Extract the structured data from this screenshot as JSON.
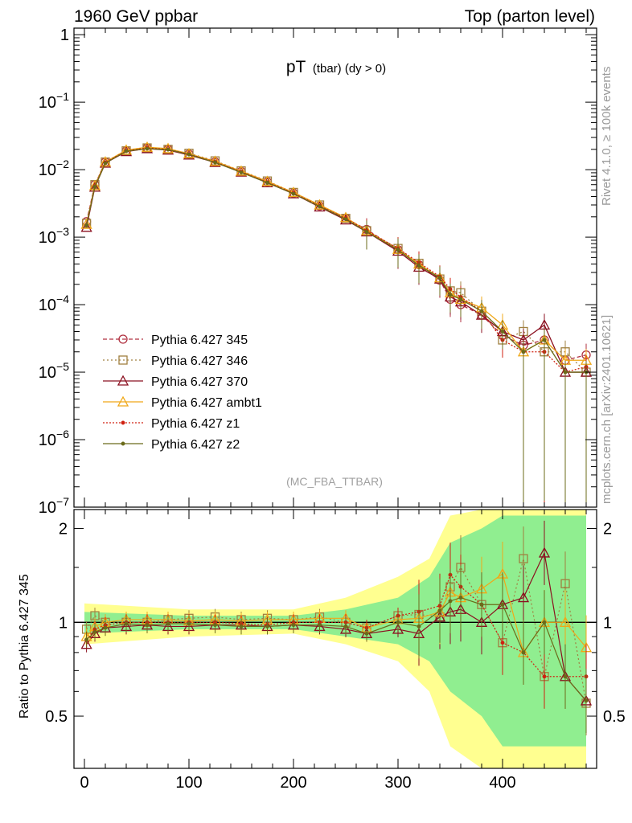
{
  "header": {
    "left": "1960 GeV ppbar",
    "right": "Top (parton level)"
  },
  "side_labels": {
    "rivet": "Rivet 4.1.0, ≥ 100k events",
    "mcplots": "mcplots.cern.ch [arXiv:2401.10621]"
  },
  "colors": {
    "p345": "#b03040",
    "p346": "#a08040",
    "p370": "#8b1020",
    "ambt1": "#f0a818",
    "z1": "#d02010",
    "z2": "#6b6b1a",
    "band_yellow": "#ffff90",
    "band_green": "#90ee90"
  },
  "chart_data": [
    {
      "type": "line",
      "title": "pT (tbar) (dy > 0)",
      "title_main": "pT",
      "title_sub": "(tbar) (dy > 0)",
      "watermark": "(MC_FBA_TTBAR)",
      "xlabel": "",
      "ylabel": "",
      "yscale": "log",
      "xlim": [
        -10,
        490
      ],
      "ylim": [
        1e-07,
        1.25
      ],
      "yticks": [
        {
          "base": "1",
          "exp": ""
        },
        {
          "base": "10",
          "exp": "−1"
        },
        {
          "base": "10",
          "exp": "−2"
        },
        {
          "base": "10",
          "exp": "−3"
        },
        {
          "base": "10",
          "exp": "−4"
        },
        {
          "base": "10",
          "exp": "−5"
        },
        {
          "base": "10",
          "exp": "−6"
        },
        {
          "base": "10",
          "exp": "−7"
        }
      ],
      "legend_position": "bottom-left",
      "series": [
        {
          "name": "Pythia 6.427 345",
          "color": "#b03040",
          "marker": "circle",
          "dash": "5,3",
          "x": [
            2,
            10,
            20,
            40,
            60,
            80,
            100,
            125,
            150,
            175,
            200,
            225,
            250,
            270,
            300,
            320,
            340,
            350,
            360,
            380,
            400,
            420,
            440,
            460,
            480
          ],
          "y": [
            0.0017,
            0.006,
            0.013,
            0.019,
            0.021,
            0.02,
            0.017,
            0.013,
            0.0094,
            0.0066,
            0.0045,
            0.0029,
            0.0019,
            0.0013,
            0.00065,
            0.00039,
            0.00023,
            0.00012,
            0.0001,
            7e-05,
            3.5e-05,
            2.5e-05,
            3e-05,
            1.5e-05,
            1.8e-05
          ]
        },
        {
          "name": "Pythia 6.427 346",
          "color": "#a08040",
          "marker": "square-open",
          "dash": "2,3",
          "x": [
            2,
            10,
            20,
            40,
            60,
            80,
            100,
            125,
            150,
            175,
            200,
            225,
            250,
            270,
            300,
            320,
            340,
            350,
            360,
            380,
            400,
            420,
            440,
            460,
            480
          ],
          "y": [
            0.0016,
            0.006,
            0.013,
            0.019,
            0.021,
            0.02,
            0.0175,
            0.0135,
            0.0096,
            0.0068,
            0.0046,
            0.003,
            0.0019,
            0.00125,
            0.00068,
            0.00041,
            0.00024,
            0.00016,
            0.00015,
            8e-05,
            3e-05,
            4e-05,
            2e-05,
            2e-05,
            1e-05
          ]
        },
        {
          "name": "Pythia 6.427 370",
          "color": "#8b1020",
          "marker": "triangle-open",
          "dash": "",
          "x": [
            2,
            10,
            20,
            40,
            60,
            80,
            100,
            125,
            150,
            175,
            200,
            225,
            250,
            270,
            300,
            320,
            340,
            350,
            360,
            380,
            400,
            420,
            440,
            460,
            480
          ],
          "y": [
            0.0014,
            0.0055,
            0.0125,
            0.0185,
            0.0205,
            0.0195,
            0.0165,
            0.0128,
            0.0092,
            0.0064,
            0.0044,
            0.0028,
            0.0018,
            0.0012,
            0.00062,
            0.00036,
            0.00024,
            0.00013,
            0.00011,
            7e-05,
            4e-05,
            3e-05,
            5e-05,
            1e-05,
            1e-05
          ]
        },
        {
          "name": "Pythia 6.427 ambt1",
          "color": "#f0a818",
          "marker": "triangle-open",
          "dash": "",
          "x": [
            2,
            10,
            20,
            40,
            60,
            80,
            100,
            125,
            150,
            175,
            200,
            225,
            250,
            270,
            300,
            320,
            340,
            350,
            360,
            380,
            400,
            420,
            440,
            460,
            480
          ],
          "y": [
            0.00155,
            0.0058,
            0.013,
            0.0195,
            0.0215,
            0.0205,
            0.0172,
            0.0133,
            0.0095,
            0.0067,
            0.0046,
            0.003,
            0.00195,
            0.00125,
            0.00066,
            0.0004,
            0.00025,
            0.00015,
            0.00012,
            9e-05,
            5e-05,
            2e-05,
            3e-05,
            1.5e-05,
            1.5e-05
          ]
        },
        {
          "name": "Pythia 6.427 z1",
          "color": "#d02010",
          "marker": "dot",
          "dash": "2,2",
          "x": [
            2,
            10,
            20,
            40,
            60,
            80,
            100,
            125,
            150,
            175,
            200,
            225,
            250,
            270,
            300,
            320,
            340,
            350,
            360,
            380,
            400,
            420,
            440,
            460,
            480
          ],
          "y": [
            0.0015,
            0.0057,
            0.0128,
            0.019,
            0.021,
            0.02,
            0.017,
            0.013,
            0.0093,
            0.0065,
            0.0045,
            0.0029,
            0.0019,
            0.00125,
            0.00068,
            0.00042,
            0.00026,
            0.00017,
            0.00013,
            8e-05,
            3e-05,
            2e-05,
            2e-05,
            1e-05,
            1.2e-05
          ]
        },
        {
          "name": "Pythia 6.427 z2",
          "color": "#6b6b1a",
          "marker": "dot",
          "dash": "",
          "x": [
            2,
            10,
            20,
            40,
            60,
            80,
            100,
            125,
            150,
            175,
            200,
            225,
            250,
            270,
            300,
            320,
            340,
            350,
            360,
            380,
            400,
            420,
            440,
            460,
            480
          ],
          "y": [
            0.0015,
            0.0056,
            0.0125,
            0.0188,
            0.0205,
            0.0198,
            0.0168,
            0.0128,
            0.0091,
            0.0064,
            0.0044,
            0.00285,
            0.00185,
            0.0012,
            0.00065,
            0.00038,
            0.00025,
            0.00014,
            0.00012,
            8e-05,
            4e-05,
            2e-05,
            3e-05,
            1e-05,
            1e-05
          ]
        }
      ]
    },
    {
      "type": "line",
      "ylabel": "Ratio to Pythia 6.427 345",
      "xlim": [
        -10,
        490
      ],
      "ylim": [
        0.34,
        2.3
      ],
      "xticks": [
        "0",
        "100",
        "200",
        "300",
        "400"
      ],
      "xtick_values": [
        0,
        100,
        200,
        300,
        400
      ],
      "yticks": [
        "0.5",
        "1",
        "2"
      ],
      "ytick_values": [
        0.5,
        1,
        2
      ],
      "reference": 1,
      "bands": [
        {
          "name": "yellow",
          "x": [
            0,
            100,
            200,
            250,
            300,
            330,
            350,
            380,
            400,
            420,
            440,
            460,
            480
          ],
          "lo": [
            0.85,
            0.9,
            0.92,
            0.85,
            0.75,
            0.6,
            0.4,
            0.3,
            0.3,
            0.3,
            0.3,
            0.3,
            0.3
          ],
          "hi": [
            1.15,
            1.1,
            1.1,
            1.2,
            1.4,
            1.6,
            2.2,
            2.3,
            2.3,
            2.3,
            2.3,
            2.3,
            2.3
          ]
        },
        {
          "name": "green",
          "x": [
            0,
            100,
            200,
            250,
            300,
            330,
            350,
            380,
            400,
            420,
            440,
            460,
            480
          ],
          "lo": [
            0.92,
            0.95,
            0.95,
            0.9,
            0.85,
            0.75,
            0.6,
            0.5,
            0.4,
            0.4,
            0.4,
            0.4,
            0.4
          ],
          "hi": [
            1.08,
            1.05,
            1.05,
            1.1,
            1.2,
            1.4,
            1.8,
            2,
            2.2,
            2.2,
            2.2,
            2.2,
            2.2
          ]
        }
      ],
      "series": [
        {
          "name": "Pythia 6.427 346",
          "color": "#a08040",
          "marker": "square-open",
          "dash": "2,3",
          "x": [
            2,
            10,
            20,
            40,
            60,
            80,
            100,
            125,
            150,
            175,
            200,
            225,
            250,
            270,
            300,
            320,
            340,
            350,
            360,
            380,
            400,
            420,
            440,
            460,
            480
          ],
          "y": [
            0.95,
            1.05,
            1.0,
            1.0,
            1.0,
            1.02,
            1.03,
            1.04,
            1.02,
            1.03,
            1.02,
            1.04,
            1.0,
            0.96,
            1.05,
            1.06,
            1.04,
            1.3,
            1.5,
            1.14,
            0.86,
            1.6,
            0.67,
            1.33,
            0.55
          ]
        },
        {
          "name": "Pythia 6.427 370",
          "color": "#8b1020",
          "marker": "triangle-open",
          "dash": "",
          "x": [
            2,
            10,
            20,
            40,
            60,
            80,
            100,
            125,
            150,
            175,
            200,
            225,
            250,
            270,
            300,
            320,
            340,
            350,
            360,
            380,
            400,
            420,
            440,
            460,
            480
          ],
          "y": [
            0.85,
            0.92,
            0.96,
            0.97,
            0.98,
            0.97,
            0.97,
            0.98,
            0.98,
            0.97,
            0.98,
            0.97,
            0.95,
            0.92,
            0.95,
            0.92,
            1.04,
            1.08,
            1.1,
            1.0,
            1.14,
            1.2,
            1.67,
            0.67,
            0.56
          ]
        },
        {
          "name": "Pythia 6.427 ambt1",
          "color": "#f0a818",
          "marker": "triangle-open",
          "dash": "",
          "x": [
            2,
            10,
            20,
            40,
            60,
            80,
            100,
            125,
            150,
            175,
            200,
            225,
            250,
            270,
            300,
            320,
            340,
            350,
            360,
            380,
            400,
            420,
            440,
            460,
            480
          ],
          "y": [
            0.9,
            0.97,
            1.0,
            1.02,
            1.02,
            1.02,
            1.01,
            1.02,
            1.01,
            1.02,
            1.02,
            1.03,
            1.03,
            0.96,
            1.02,
            1.03,
            1.08,
            1.25,
            1.2,
            1.28,
            1.43,
            0.8,
            1.0,
            1.0,
            0.83
          ]
        },
        {
          "name": "Pythia 6.427 z1",
          "color": "#d02010",
          "marker": "dot",
          "dash": "2,2",
          "x": [
            2,
            10,
            20,
            40,
            60,
            80,
            100,
            125,
            150,
            175,
            200,
            225,
            250,
            270,
            300,
            320,
            340,
            350,
            360,
            380,
            400,
            420,
            440,
            460,
            480
          ],
          "y": [
            0.88,
            0.95,
            0.98,
            1.0,
            1.0,
            1.0,
            1.0,
            1.0,
            0.99,
            0.98,
            1.0,
            1.0,
            1.0,
            0.96,
            1.05,
            1.08,
            1.13,
            1.42,
            1.3,
            1.14,
            0.86,
            0.8,
            0.67,
            0.67,
            0.67
          ]
        },
        {
          "name": "Pythia 6.427 z2",
          "color": "#6b6b1a",
          "marker": "dot",
          "dash": "",
          "x": [
            2,
            10,
            20,
            40,
            60,
            80,
            100,
            125,
            150,
            175,
            200,
            225,
            250,
            270,
            300,
            320,
            340,
            350,
            360,
            380,
            400,
            420,
            440,
            460,
            480
          ],
          "y": [
            0.88,
            0.93,
            0.96,
            0.99,
            0.98,
            0.99,
            0.99,
            0.98,
            0.97,
            0.97,
            0.98,
            0.98,
            0.97,
            0.92,
            1.0,
            0.97,
            1.09,
            1.17,
            1.2,
            1.14,
            1.14,
            0.8,
            1.0,
            0.67,
            0.56
          ]
        }
      ]
    }
  ]
}
